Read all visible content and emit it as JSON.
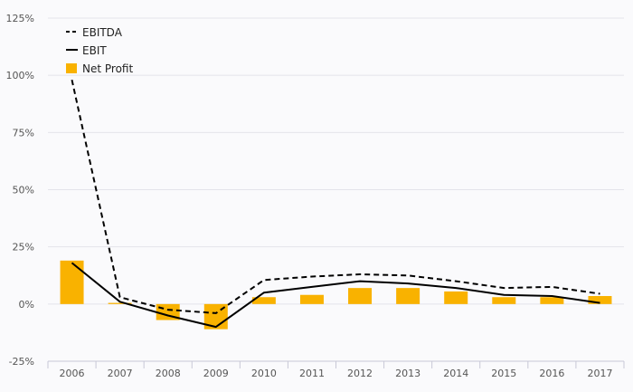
{
  "chart_data": {
    "type": "bar",
    "categories": [
      "2006",
      "2007",
      "2008",
      "2009",
      "2010",
      "2011",
      "2012",
      "2013",
      "2014",
      "2015",
      "2016",
      "2017"
    ],
    "y_ticks": [
      "-25%",
      "0%",
      "25%",
      "50%",
      "75%",
      "100%",
      "125%"
    ],
    "ylim": [
      -25,
      125
    ],
    "grid": true,
    "legend_position": "top-left",
    "series": [
      {
        "name": "EBITDA",
        "kind": "line",
        "style": "dashed",
        "values": [
          98,
          3,
          -2.5,
          -4,
          10.5,
          12,
          13,
          12.5,
          10,
          7,
          7.5,
          4.5
        ]
      },
      {
        "name": "EBIT",
        "kind": "line",
        "style": "solid",
        "values": [
          18,
          1,
          -5,
          -10,
          5,
          7.5,
          10,
          9,
          7,
          4,
          3.5,
          0.5
        ]
      },
      {
        "name": "Net Profit",
        "kind": "bar",
        "values": [
          19,
          0.5,
          -7,
          -11,
          3,
          4,
          7,
          7,
          5.5,
          3,
          3,
          3.5
        ]
      }
    ]
  },
  "colors": {
    "bar": "#f9b200",
    "line": "#000000",
    "grid": "#e4e4ea",
    "axis": "#c8c8d6",
    "background": "#fafafc"
  }
}
